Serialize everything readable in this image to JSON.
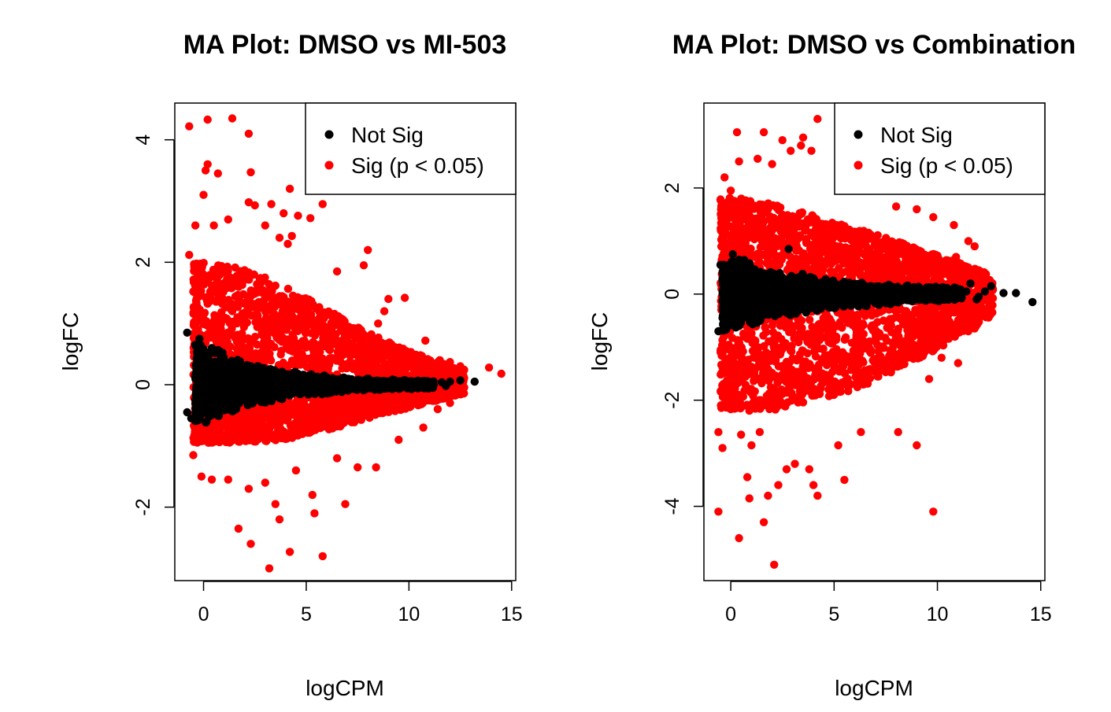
{
  "colors": {
    "not_sig": "#000000",
    "sig": "#ff0000"
  },
  "chart_data": [
    {
      "type": "scatter",
      "title": "MA Plot: DMSO vs MI-503",
      "xlabel": "logCPM",
      "ylabel": "logFC",
      "xlim": [
        -1.4,
        15.2
      ],
      "ylim": [
        -3.2,
        4.6
      ],
      "xticks": [
        0,
        5,
        10,
        15
      ],
      "xtick_labels": [
        "0",
        "5",
        "10",
        "15"
      ],
      "yticks": [
        -2,
        0,
        2,
        4
      ],
      "ytick_labels": [
        "-2",
        "0",
        "2",
        "4"
      ],
      "grid": false,
      "legend": {
        "position": "top-right",
        "entries": [
          "Not Sig",
          "Sig (p < 0.05)"
        ]
      },
      "sig_points": [
        [
          -0.7,
          4.22
        ],
        [
          0.2,
          4.33
        ],
        [
          1.4,
          4.35
        ],
        [
          2.2,
          4.1
        ],
        [
          0.2,
          3.6
        ],
        [
          0.1,
          3.5
        ],
        [
          0.7,
          3.45
        ],
        [
          2.3,
          3.47
        ],
        [
          0.0,
          3.1
        ],
        [
          4.2,
          3.2
        ],
        [
          2.2,
          2.98
        ],
        [
          2.5,
          2.93
        ],
        [
          3.3,
          2.95
        ],
        [
          3.9,
          2.8
        ],
        [
          4.6,
          2.76
        ],
        [
          5.8,
          2.95
        ],
        [
          -0.4,
          2.6
        ],
        [
          0.5,
          2.6
        ],
        [
          1.2,
          2.7
        ],
        [
          3.0,
          2.6
        ],
        [
          5.2,
          2.72
        ],
        [
          3.7,
          2.4
        ],
        [
          4.3,
          2.43
        ],
        [
          4.1,
          2.3
        ],
        [
          8.0,
          2.2
        ],
        [
          -0.7,
          2.12
        ],
        [
          7.8,
          1.95
        ],
        [
          6.5,
          1.85
        ],
        [
          9.0,
          1.4
        ],
        [
          8.8,
          1.2
        ],
        [
          9.8,
          1.42
        ],
        [
          8.5,
          1.0
        ],
        [
          10.8,
          0.72
        ],
        [
          11.5,
          0.4
        ],
        [
          12.0,
          0.37
        ],
        [
          12.5,
          0.3
        ],
        [
          13.9,
          0.28
        ],
        [
          14.5,
          0.18
        ],
        [
          10.6,
          0.25
        ],
        [
          11.9,
          0.1
        ],
        [
          -0.5,
          -1.15
        ],
        [
          0.4,
          -1.55
        ],
        [
          -0.1,
          -1.5
        ],
        [
          1.2,
          -1.55
        ],
        [
          2.2,
          -1.7
        ],
        [
          3.0,
          -1.6
        ],
        [
          1.7,
          -2.35
        ],
        [
          2.3,
          -2.6
        ],
        [
          3.5,
          -1.95
        ],
        [
          3.7,
          -2.2
        ],
        [
          4.2,
          -2.73
        ],
        [
          3.2,
          -3.0
        ],
        [
          5.3,
          -1.8
        ],
        [
          5.4,
          -2.1
        ],
        [
          5.8,
          -2.8
        ],
        [
          6.9,
          -1.95
        ],
        [
          6.5,
          -1.2
        ],
        [
          7.5,
          -1.35
        ],
        [
          8.4,
          -1.35
        ],
        [
          10.7,
          -0.7
        ],
        [
          11.4,
          -0.4
        ],
        [
          12.0,
          -0.3
        ],
        [
          9.5,
          -0.9
        ],
        [
          4.5,
          -1.4
        ]
      ],
      "sig_envelope": [
        [
          0,
          2.0
        ],
        [
          2,
          1.9
        ],
        [
          4,
          1.6
        ],
        [
          6,
          1.25
        ],
        [
          8,
          0.85
        ],
        [
          10,
          0.55
        ],
        [
          12,
          0.32
        ],
        [
          13,
          0.22
        ]
      ],
      "sig_lower_envelope": [
        [
          0,
          -0.95
        ],
        [
          2,
          -0.95
        ],
        [
          4,
          -0.9
        ],
        [
          6,
          -0.75
        ],
        [
          8,
          -0.55
        ],
        [
          10,
          -0.38
        ],
        [
          12,
          -0.2
        ],
        [
          13,
          -0.12
        ]
      ],
      "notsig_envelope": [
        [
          0,
          0.7
        ],
        [
          2,
          0.4
        ],
        [
          4,
          0.25
        ],
        [
          6,
          0.15
        ],
        [
          8,
          0.1
        ],
        [
          10,
          0.08
        ],
        [
          12,
          0.06
        ]
      ],
      "notsig_points": [
        [
          -0.8,
          -0.45
        ],
        [
          -0.6,
          -0.55
        ],
        [
          -0.8,
          0.85
        ],
        [
          -0.4,
          0.65
        ],
        [
          -0.2,
          0.75
        ],
        [
          0.4,
          0.6
        ],
        [
          12.0,
          0.05
        ],
        [
          13.2,
          0.05
        ],
        [
          12.5,
          0.07
        ],
        [
          11.6,
          0.04
        ],
        [
          10.9,
          0.05
        ],
        [
          11.2,
          0.0
        ],
        [
          11.8,
          -0.02
        ]
      ],
      "seed": 17
    },
    {
      "type": "scatter",
      "title": "MA Plot: DMSO vs Combination",
      "xlabel": "logCPM",
      "ylabel": "logFC",
      "xlim": [
        -1.3,
        15.2
      ],
      "ylim": [
        -5.4,
        3.6
      ],
      "xticks": [
        0,
        5,
        10,
        15
      ],
      "xtick_labels": [
        "0",
        "5",
        "10",
        "15"
      ],
      "yticks": [
        -4,
        -2,
        0,
        2
      ],
      "ytick_labels": [
        "-4",
        "-2",
        "0",
        "2"
      ],
      "grid": false,
      "legend": {
        "position": "top-right",
        "entries": [
          "Not Sig",
          "Sig (p < 0.05)"
        ]
      },
      "sig_points": [
        [
          0.3,
          3.05
        ],
        [
          1.6,
          3.05
        ],
        [
          2.5,
          2.9
        ],
        [
          3.5,
          2.95
        ],
        [
          4.2,
          3.3
        ],
        [
          3.4,
          2.8
        ],
        [
          3.9,
          2.7
        ],
        [
          2.9,
          2.7
        ],
        [
          1.3,
          2.55
        ],
        [
          2.0,
          2.45
        ],
        [
          0.4,
          2.5
        ],
        [
          -0.3,
          2.2
        ],
        [
          0.0,
          1.95
        ],
        [
          5.5,
          2.35
        ],
        [
          6.0,
          2.2
        ],
        [
          7.2,
          2.0
        ],
        [
          8.0,
          1.65
        ],
        [
          9.0,
          1.6
        ],
        [
          9.8,
          1.45
        ],
        [
          10.8,
          1.3
        ],
        [
          11.5,
          1.0
        ],
        [
          11.8,
          0.9
        ],
        [
          10.9,
          0.7
        ],
        [
          12.2,
          0.3
        ],
        [
          -0.6,
          -2.6
        ],
        [
          -0.4,
          -2.9
        ],
        [
          0.5,
          -2.65
        ],
        [
          1.0,
          -2.85
        ],
        [
          1.4,
          -2.6
        ],
        [
          0.8,
          -3.45
        ],
        [
          0.9,
          -3.85
        ],
        [
          1.8,
          -3.8
        ],
        [
          2.3,
          -3.6
        ],
        [
          2.7,
          -3.3
        ],
        [
          3.1,
          -3.2
        ],
        [
          3.8,
          -3.3
        ],
        [
          4.0,
          -3.6
        ],
        [
          4.2,
          -3.8
        ],
        [
          5.2,
          -2.85
        ],
        [
          5.5,
          -3.5
        ],
        [
          6.3,
          -2.6
        ],
        [
          8.1,
          -2.6
        ],
        [
          9.0,
          -2.85
        ],
        [
          9.6,
          -1.6
        ],
        [
          10.2,
          -1.2
        ],
        [
          11.0,
          -1.3
        ],
        [
          11.8,
          -0.65
        ],
        [
          -0.6,
          -4.1
        ],
        [
          0.4,
          -4.6
        ],
        [
          1.6,
          -4.3
        ],
        [
          2.1,
          -5.1
        ],
        [
          9.8,
          -4.1
        ],
        [
          10.8,
          -0.6
        ],
        [
          12.0,
          -0.3
        ]
      ],
      "sig_envelope": [
        [
          0,
          1.85
        ],
        [
          2,
          1.7
        ],
        [
          4,
          1.5
        ],
        [
          6,
          1.25
        ],
        [
          8,
          1.0
        ],
        [
          10,
          0.75
        ],
        [
          12,
          0.45
        ],
        [
          13,
          0.3
        ]
      ],
      "sig_lower_envelope": [
        [
          0,
          -2.2
        ],
        [
          2,
          -2.2
        ],
        [
          4,
          -2.0
        ],
        [
          6,
          -1.8
        ],
        [
          8,
          -1.45
        ],
        [
          10,
          -1.05
        ],
        [
          12,
          -0.6
        ],
        [
          13,
          -0.35
        ]
      ],
      "notsig_envelope": [
        [
          0,
          0.75
        ],
        [
          2,
          0.5
        ],
        [
          4,
          0.35
        ],
        [
          6,
          0.25
        ],
        [
          8,
          0.18
        ],
        [
          10,
          0.14
        ],
        [
          12,
          0.12
        ],
        [
          13,
          0.12
        ]
      ],
      "notsig_points": [
        [
          -0.6,
          -0.7
        ],
        [
          -0.4,
          -0.45
        ],
        [
          -0.5,
          0.55
        ],
        [
          0.1,
          0.75
        ],
        [
          2.8,
          0.85
        ],
        [
          12.3,
          0.05
        ],
        [
          12.6,
          0.15
        ],
        [
          13.2,
          0.02
        ],
        [
          13.8,
          0.02
        ],
        [
          14.6,
          -0.15
        ],
        [
          12.0,
          -0.05
        ],
        [
          11.6,
          0.2
        ],
        [
          11.9,
          -0.1
        ],
        [
          11.4,
          0.05
        ]
      ],
      "seed": 29
    }
  ]
}
